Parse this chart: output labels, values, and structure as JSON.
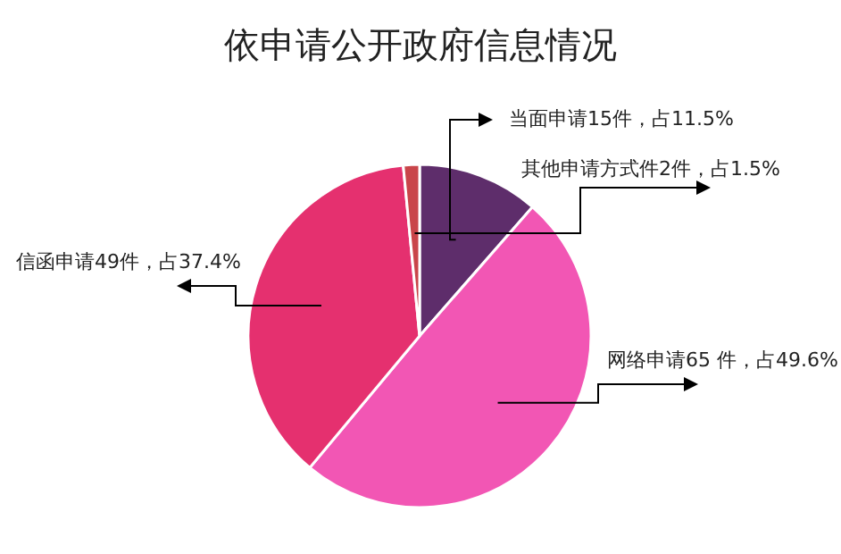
{
  "chart_data": {
    "type": "pie",
    "title": "依申请公开政府信息情况",
    "categories": [
      "当面申请15件，占11.5%",
      "网络申请65 件，占49.6%",
      "信函申请49件，占37.4%",
      "其他申请方式件2件，占1.5%"
    ],
    "values": [
      15,
      65,
      49,
      2
    ],
    "colors": [
      "#5e2d6b",
      "#f256b4",
      "#e5306f",
      "#c9454a"
    ]
  }
}
